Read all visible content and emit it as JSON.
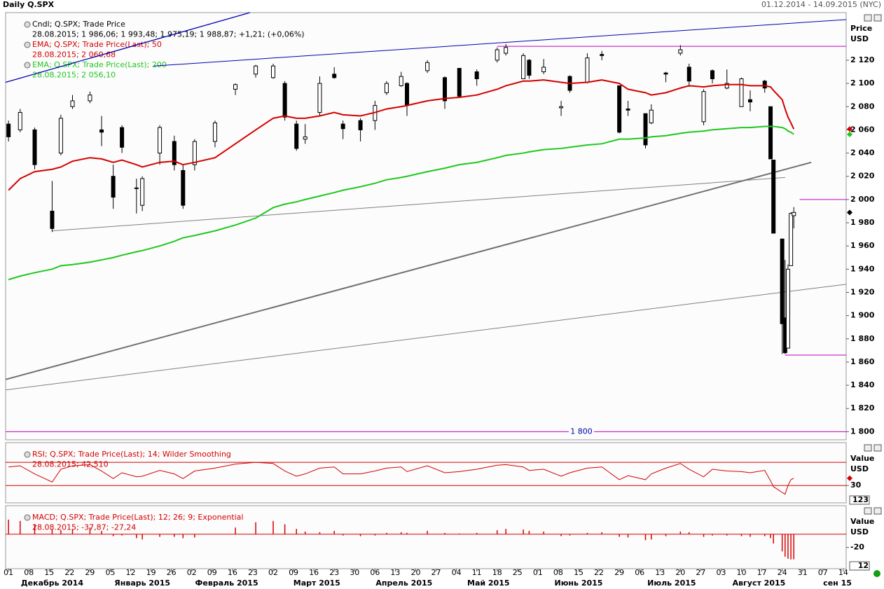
{
  "header": {
    "title": "Daily Q.SPX",
    "range": "01.12.2014 - 14.09.2015 (NYC)"
  },
  "time_axis": {
    "xlim": [
      "2014-11-30",
      "2015-09-15"
    ],
    "xticks": [
      {
        "value": "2014-12-01",
        "label": "01"
      },
      {
        "value": "2014-12-08",
        "label": "08"
      },
      {
        "value": "2014-12-15",
        "label": "15"
      },
      {
        "value": "2014-12-22",
        "label": "22"
      },
      {
        "value": "2014-12-29",
        "label": "29"
      },
      {
        "value": "2015-01-05",
        "label": "05"
      },
      {
        "value": "2015-01-12",
        "label": "12"
      },
      {
        "value": "2015-01-19",
        "label": "19"
      },
      {
        "value": "2015-01-26",
        "label": "26"
      },
      {
        "value": "2015-02-02",
        "label": "02"
      },
      {
        "value": "2015-02-09",
        "label": "09"
      },
      {
        "value": "2015-02-16",
        "label": "16"
      },
      {
        "value": "2015-02-23",
        "label": "23"
      },
      {
        "value": "2015-03-02",
        "label": "02"
      },
      {
        "value": "2015-03-09",
        "label": "09"
      },
      {
        "value": "2015-03-16",
        "label": "16"
      },
      {
        "value": "2015-03-23",
        "label": "23"
      },
      {
        "value": "2015-03-30",
        "label": "30"
      },
      {
        "value": "2015-04-06",
        "label": "06"
      },
      {
        "value": "2015-04-13",
        "label": "13"
      },
      {
        "value": "2015-04-20",
        "label": "20"
      },
      {
        "value": "2015-04-27",
        "label": "27"
      },
      {
        "value": "2015-05-04",
        "label": "04"
      },
      {
        "value": "2015-05-11",
        "label": "11"
      },
      {
        "value": "2015-05-18",
        "label": "18"
      },
      {
        "value": "2015-05-25",
        "label": "25"
      },
      {
        "value": "2015-06-01",
        "label": "01"
      },
      {
        "value": "2015-06-08",
        "label": "08"
      },
      {
        "value": "2015-06-15",
        "label": "15"
      },
      {
        "value": "2015-06-22",
        "label": "22"
      },
      {
        "value": "2015-06-29",
        "label": "29"
      },
      {
        "value": "2015-07-06",
        "label": "06"
      },
      {
        "value": "2015-07-13",
        "label": "13"
      },
      {
        "value": "2015-07-20",
        "label": "20"
      },
      {
        "value": "2015-07-27",
        "label": "27"
      },
      {
        "value": "2015-08-03",
        "label": "03"
      },
      {
        "value": "2015-08-10",
        "label": "10"
      },
      {
        "value": "2015-08-17",
        "label": "17"
      },
      {
        "value": "2015-08-24",
        "label": "24"
      },
      {
        "value": "2015-08-31",
        "label": "31"
      },
      {
        "value": "2015-09-07",
        "label": "07"
      },
      {
        "value": "2015-09-14",
        "label": "14"
      }
    ],
    "month_labels": [
      {
        "value": "2014-12-16",
        "label": "Декабрь 2014"
      },
      {
        "value": "2015-01-16",
        "label": "Январь 2015"
      },
      {
        "value": "2015-02-14",
        "label": "Февраль 2015"
      },
      {
        "value": "2015-03-17",
        "label": "Март 2015"
      },
      {
        "value": "2015-04-16",
        "label": "Апрель 2015"
      },
      {
        "value": "2015-05-15",
        "label": "Май 2015"
      },
      {
        "value": "2015-06-15",
        "label": "Июнь 2015"
      },
      {
        "value": "2015-07-17",
        "label": "Июль 2015"
      },
      {
        "value": "2015-08-16",
        "label": "Август 2015"
      },
      {
        "value": "2015-09-12",
        "label": "сен 15"
      }
    ]
  },
  "chart_data": [
    {
      "type": "candlestick",
      "axis_label": [
        "Price",
        "USD"
      ],
      "legend": [
        {
          "text": "Cndl; Q.SPX; Trade Price",
          "color": "#000"
        },
        {
          "text": "28.08.2015; 1 986,06; 1 993,48; 1 975,19; 1 988,87; +1,21; (+0,06%)",
          "color": "#000"
        },
        {
          "text": "EMA; Q.SPX; Trade Price(Last);  50",
          "color": "#d40000"
        },
        {
          "text": "28.08.2015; 2 060,68",
          "color": "#d40000"
        },
        {
          "text": "EMA; Q.SPX; Trade Price(Last);  200",
          "color": "#1ec81e"
        },
        {
          "text": "28.08.2015; 2 056,10",
          "color": "#1ec81e"
        }
      ],
      "ylim": [
        1793,
        2161
      ],
      "yticks": [
        {
          "value": 1800,
          "label": "1 800"
        },
        {
          "value": 1820,
          "label": "1 820"
        },
        {
          "value": 1840,
          "label": "1 840"
        },
        {
          "value": 1860,
          "label": "1 860"
        },
        {
          "value": 1880,
          "label": "1 880"
        },
        {
          "value": 1900,
          "label": "1 900"
        },
        {
          "value": 1920,
          "label": "1 920"
        },
        {
          "value": 1940,
          "label": "1 940"
        },
        {
          "value": 1960,
          "label": "1 960"
        },
        {
          "value": 1980,
          "label": "1 980"
        },
        {
          "value": 2000,
          "label": "2 000"
        },
        {
          "value": 2020,
          "label": "2 020"
        },
        {
          "value": 2040,
          "label": "2 040"
        },
        {
          "value": 2060,
          "label": "2 060"
        },
        {
          "value": 2080,
          "label": "2 080"
        },
        {
          "value": 2100,
          "label": "2 100"
        },
        {
          "value": 2120,
          "label": "2 120"
        }
      ],
      "x": [
        "2014-12-01",
        "2014-12-05",
        "2014-12-10",
        "2014-12-16",
        "2014-12-19",
        "2014-12-23",
        "2014-12-29",
        "2015-01-02",
        "2015-01-06",
        "2015-01-09",
        "2015-01-14",
        "2015-01-16",
        "2015-01-22",
        "2015-01-27",
        "2015-01-30",
        "2015-02-03",
        "2015-02-10",
        "2015-02-17",
        "2015-02-24",
        "2015-03-02",
        "2015-03-06",
        "2015-03-10",
        "2015-03-13",
        "2015-03-18",
        "2015-03-23",
        "2015-03-26",
        "2015-04-01",
        "2015-04-06",
        "2015-04-10",
        "2015-04-15",
        "2015-04-17",
        "2015-04-24",
        "2015-04-30",
        "2015-05-05",
        "2015-05-11",
        "2015-05-18",
        "2015-05-21",
        "2015-05-27",
        "2015-05-29",
        "2015-06-03",
        "2015-06-09",
        "2015-06-12",
        "2015-06-18",
        "2015-06-23",
        "2015-06-29",
        "2015-07-02",
        "2015-07-08",
        "2015-07-10",
        "2015-07-15",
        "2015-07-20",
        "2015-07-23",
        "2015-07-28",
        "2015-07-31",
        "2015-08-05",
        "2015-08-10",
        "2015-08-13",
        "2015-08-18",
        "2015-08-20",
        "2015-08-21",
        "2015-08-24",
        "2015-08-25",
        "2015-08-26",
        "2015-08-27",
        "2015-08-28"
      ],
      "open": [
        2065,
        2060,
        2060,
        1990,
        2040,
        2080,
        2085,
        2060,
        2020,
        2062,
        2010,
        1995,
        2040,
        2050,
        2025,
        2030,
        2050,
        2095,
        2108,
        2105,
        2100,
        2065,
        2052,
        2075,
        2108,
        2065,
        2068,
        2068,
        2092,
        2098,
        2100,
        2111,
        2105,
        2113,
        2110,
        2120,
        2126,
        2104,
        2120,
        2110,
        2079,
        2106,
        2101,
        2125,
        2098,
        2078,
        2074,
        2066,
        2109,
        2126,
        2114,
        2067,
        2111,
        2096,
        2080,
        2086,
        2102,
        2080,
        2034,
        1966,
        1898,
        1872,
        1943,
        1986.06
      ],
      "high": [
        2068,
        2078,
        2062,
        2016,
        2073,
        2090,
        2093,
        2072,
        2030,
        2064,
        2018,
        2020,
        2064,
        2055,
        2030,
        2052,
        2068,
        2100,
        2116,
        2117,
        2102,
        2068,
        2065,
        2106,
        2114,
        2068,
        2070,
        2085,
        2102,
        2110,
        2101,
        2120,
        2106,
        2113,
        2112,
        2131,
        2134,
        2126,
        2121,
        2121,
        2085,
        2107,
        2126,
        2128,
        2098,
        2085,
        2074,
        2082,
        2110,
        2133,
        2117,
        2095,
        2112,
        2112,
        2105,
        2094,
        2103,
        2080,
        2034,
        1966,
        1948,
        1944,
        1989,
        1993.48
      ],
      "low": [
        2050,
        2058,
        2026,
        1972,
        2038,
        2078,
        2083,
        2046,
        1992,
        2040,
        1988,
        1990,
        2030,
        2025,
        1992,
        2025,
        2045,
        2090,
        2105,
        2104,
        2068,
        2042,
        2048,
        2072,
        2104,
        2052,
        2050,
        2060,
        2090,
        2097,
        2072,
        2109,
        2078,
        2088,
        2098,
        2118,
        2124,
        2104,
        2104,
        2108,
        2072,
        2092,
        2100,
        2120,
        2057,
        2072,
        2044,
        2065,
        2101,
        2124,
        2097,
        2064,
        2100,
        2095,
        2080,
        2076,
        2092,
        2035,
        1971,
        1867,
        1867,
        1872,
        1943,
        1975.19
      ],
      "close": [
        2054,
        2075,
        2030,
        1975,
        2070,
        2085,
        2090,
        2058,
        2002,
        2045,
        2010,
        2018,
        2062,
        2030,
        1995,
        2050,
        2066,
        2099,
        2115,
        2115,
        2071,
        2044,
        2054,
        2100,
        2105,
        2061,
        2060,
        2081,
        2100,
        2106,
        2081,
        2118,
        2085,
        2089,
        2104,
        2129,
        2131,
        2124,
        2107,
        2114,
        2080,
        2094,
        2122,
        2124,
        2058,
        2077,
        2047,
        2077,
        2108,
        2129,
        2102,
        2093,
        2104,
        2100,
        2104,
        2084,
        2096,
        2035,
        1971,
        1893,
        1868,
        1940,
        1988,
        1988.87
      ],
      "overlays": [
        {
          "color": "#d40000",
          "values": [
            2008,
            2018,
            2024,
            2026,
            2028,
            2033,
            2036,
            2035,
            2032,
            2034,
            2030,
            2028,
            2032,
            2033,
            2030,
            2032,
            2036,
            2048,
            2060,
            2070,
            2072,
            2070,
            2070,
            2072,
            2075,
            2073,
            2072,
            2075,
            2078,
            2080,
            2081,
            2085,
            2087,
            2088,
            2090,
            2095,
            2098,
            2102,
            2102,
            2103,
            2101,
            2100,
            2101,
            2103,
            2100,
            2095,
            2092,
            2090,
            2092,
            2096,
            2098,
            2097,
            2098,
            2099,
            2099,
            2098,
            2098,
            2097,
            2094,
            2086,
            2078,
            2071,
            2066,
            2060.68
          ]
        },
        {
          "color": "#1ec81e",
          "values": [
            1931,
            1934,
            1937,
            1940,
            1943,
            1944,
            1946,
            1948,
            1950,
            1952,
            1955,
            1956,
            1960,
            1964,
            1967,
            1969,
            1973,
            1978,
            1984,
            1993,
            1996,
            1998,
            2000,
            2003,
            2006,
            2008,
            2011,
            2014,
            2017,
            2019,
            2020,
            2024,
            2027,
            2030,
            2032,
            2036,
            2038,
            2040,
            2041,
            2043,
            2044,
            2045,
            2047,
            2048,
            2052,
            2052,
            2053,
            2054,
            2055,
            2057,
            2058,
            2059,
            2060,
            2061,
            2062,
            2062,
            2063,
            2063,
            2063,
            2062,
            2061,
            2059,
            2058,
            2056.1
          ]
        }
      ],
      "lines": [
        {
          "color": "#0000b0",
          "width": 1.3,
          "x": [
            "2014-11-30",
            "2015-02-22"
          ],
          "y": [
            2101,
            2161
          ]
        },
        {
          "color": "#0000b0",
          "width": 1,
          "x": [
            "2015-01-20",
            "2015-09-15"
          ],
          "y": [
            2115,
            2155
          ]
        },
        {
          "color": "#808080",
          "width": 1,
          "x": [
            "2014-12-16",
            "2015-08-25"
          ],
          "y": [
            1973,
            2019
          ]
        },
        {
          "color": "#707070",
          "width": 2,
          "x": [
            "2014-11-30",
            "2015-09-03"
          ],
          "y": [
            1845,
            2032
          ]
        },
        {
          "color": "#808080",
          "width": 1,
          "x": [
            "2014-11-30",
            "2015-09-15"
          ],
          "y": [
            1836,
            1927
          ]
        }
      ],
      "levels": [
        {
          "value": 2132,
          "from": "2015-05-18",
          "color": "#c000c0"
        },
        {
          "value": 2000,
          "from": "2015-08-30",
          "color": "#c000c0"
        },
        {
          "value": 1866,
          "from": "2015-08-25",
          "color": "#c000c0"
        },
        {
          "value": 1800,
          "from": "2014-11-30",
          "color": "#c000c0",
          "label": "1 800"
        }
      ]
    },
    {
      "type": "line",
      "axis_label": [
        "Value",
        "USD"
      ],
      "legend": [
        {
          "text": "RSI; Q.SPX; Trade Price(Last);  14; Wilder Smoothing",
          "color": "#d40000"
        },
        {
          "text": "28.08.2015; 42,510",
          "color": "#d40000"
        }
      ],
      "ylim": [
        0,
        104
      ],
      "yticks": [
        30
      ],
      "levels": [
        70,
        30
      ],
      "color": "#d40000",
      "box": "123",
      "values": [
        62,
        64,
        50,
        36,
        58,
        64,
        66,
        55,
        42,
        52,
        45,
        46,
        56,
        50,
        42,
        55,
        60,
        67,
        70,
        68,
        55,
        46,
        50,
        60,
        62,
        50,
        50,
        55,
        60,
        62,
        54,
        64,
        52,
        54,
        58,
        65,
        66,
        62,
        56,
        58,
        46,
        52,
        60,
        62,
        40,
        47,
        40,
        50,
        60,
        68,
        58,
        45,
        58,
        55,
        54,
        52,
        56,
        38,
        28,
        18,
        15,
        30,
        40,
        42.51
      ]
    },
    {
      "type": "bar",
      "axis_label": [
        "Value",
        "USD"
      ],
      "legend": [
        {
          "text": "MACD; Q.SPX; Trade Price(Last);  12; 26; 9; Exponential",
          "color": "#d40000"
        },
        {
          "text": "28.08.2015; -37,87; -27,24",
          "color": "#d40000"
        }
      ],
      "ylim": [
        -52,
        43
      ],
      "yticks": [
        -20
      ],
      "levels": [
        0
      ],
      "color": "#d40000",
      "box": "12",
      "values": [
        22,
        20,
        15,
        8,
        6,
        8,
        10,
        5,
        -3,
        -2,
        -6,
        -8,
        -4,
        -4,
        -6,
        -5,
        0,
        10,
        18,
        20,
        15,
        8,
        4,
        3,
        5,
        -2,
        -3,
        -2,
        2,
        3,
        2,
        5,
        2,
        1,
        2,
        6,
        8,
        7,
        5,
        4,
        -3,
        -2,
        2,
        3,
        -4,
        -5,
        -9,
        -8,
        -3,
        4,
        3,
        -4,
        -2,
        -2,
        -3,
        -4,
        -3,
        -6,
        -14,
        -26,
        -34,
        -37,
        -38,
        -37.87
      ]
    }
  ]
}
